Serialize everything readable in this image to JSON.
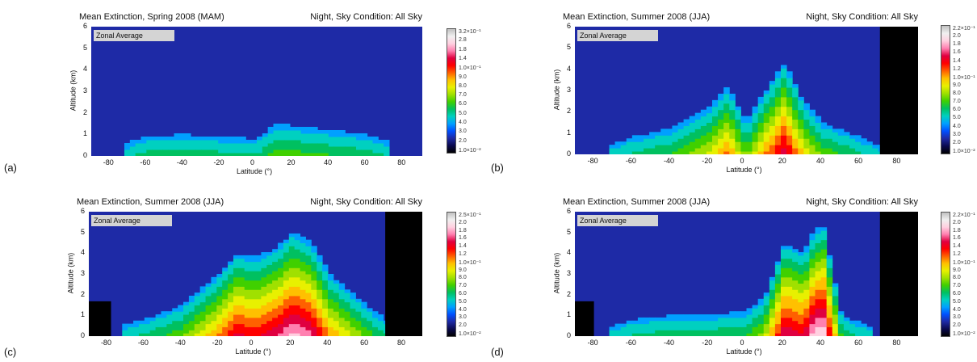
{
  "figure": {
    "panels": [
      {
        "letter": "(a)",
        "title": "Mean Extinction, Spring 2008 (MAM)",
        "condition": "Night, Sky Condition: All Sky",
        "box_label": "Zonal Average",
        "cbar_ticks": [
          "3.2×10⁻¹",
          "2.8",
          "1.8",
          "1.4",
          "1.0×10⁻¹",
          "9.0",
          "8.0",
          "7.0",
          "6.0",
          "5.0",
          "4.0",
          "3.0",
          "2.0",
          "1.0×10⁻²"
        ]
      },
      {
        "letter": "(b)",
        "title": "Mean Extinction, Summer 2008 (JJA)",
        "condition": "Night, Sky Condition: All Sky",
        "box_label": "Zonal Average",
        "cbar_ticks": [
          "2.2×10⁻¹",
          "2.0",
          "1.8",
          "1.6",
          "1.4",
          "1.2",
          "1.0×10⁻¹",
          "9.0",
          "8.0",
          "7.0",
          "6.0",
          "5.0",
          "4.0",
          "3.0",
          "2.0",
          "1.0×10⁻²"
        ]
      },
      {
        "letter": "(c)",
        "title": "Mean Extinction, Summer 2008 (JJA)",
        "condition": "Night, Sky Condition: All Sky",
        "box_label": "Zonal Average",
        "cbar_ticks": [
          "2.5×10⁻¹",
          "2.0",
          "1.8",
          "1.6",
          "1.4",
          "1.2",
          "1.0×10⁻¹",
          "9.0",
          "8.0",
          "7.0",
          "6.0",
          "5.0",
          "4.0",
          "3.0",
          "2.0",
          "1.0×10⁻²"
        ]
      },
      {
        "letter": "(d)",
        "title": "Mean Extinction, Summer 2008 (JJA)",
        "condition": "Night, Sky Condition: All Sky",
        "box_label": "Zonal Average",
        "cbar_ticks": [
          "2.2×10⁻¹",
          "2.0",
          "1.8",
          "1.6",
          "1.4",
          "1.2",
          "1.0×10⁻¹",
          "9.0",
          "8.0",
          "7.0",
          "6.0",
          "5.0",
          "4.0",
          "3.0",
          "2.0",
          "1.0×10⁻²"
        ]
      }
    ]
  },
  "chart_data": [
    {
      "type": "heatmap",
      "xlabel": "Latitude (°)",
      "ylabel": "Altitude (km)",
      "xlim": [
        -90,
        90
      ],
      "ylim": [
        0,
        6
      ],
      "x_ticks": [
        -80,
        -60,
        -40,
        -20,
        0,
        20,
        40,
        60,
        80
      ],
      "y_ticks": [
        0,
        1,
        2,
        3,
        4,
        5,
        6
      ],
      "profile_top_km": [
        [
          -70,
          0.6
        ],
        [
          -60,
          0.9
        ],
        [
          -40,
          1.0
        ],
        [
          -20,
          0.9
        ],
        [
          0,
          0.8
        ],
        [
          10,
          1.5
        ],
        [
          20,
          1.4
        ],
        [
          40,
          1.2
        ],
        [
          60,
          1.0
        ],
        [
          70,
          0.7
        ]
      ],
      "no_data_lat": []
    },
    {
      "type": "heatmap",
      "xlabel": "Latitude (°)",
      "ylabel": "Altitude (km)",
      "xlim": [
        -90,
        90
      ],
      "ylim": [
        0,
        6
      ],
      "x_ticks": [
        -80,
        -60,
        -40,
        -20,
        0,
        20,
        40,
        60,
        80
      ],
      "y_ticks": [
        0,
        1,
        2,
        3,
        4,
        5,
        6
      ],
      "profile_top_km": [
        [
          -70,
          0.5
        ],
        [
          -60,
          0.8
        ],
        [
          -40,
          1.2
        ],
        [
          -20,
          2.2
        ],
        [
          -10,
          3.2
        ],
        [
          0,
          1.5
        ],
        [
          10,
          3.0
        ],
        [
          20,
          4.3
        ],
        [
          30,
          2.5
        ],
        [
          40,
          1.5
        ],
        [
          60,
          0.8
        ],
        [
          70,
          0.4
        ]
      ],
      "no_data_lat": [
        [
          70,
          90
        ]
      ]
    },
    {
      "type": "heatmap",
      "xlabel": "Latitude (°)",
      "ylabel": "Altitude (km)",
      "xlim": [
        -90,
        90
      ],
      "ylim": [
        0,
        6
      ],
      "x_ticks": [
        -80,
        -60,
        -40,
        -20,
        0,
        20,
        40,
        60,
        80
      ],
      "y_ticks": [
        0,
        1,
        2,
        3,
        4,
        5,
        6
      ],
      "profile_top_km": [
        [
          -70,
          0.6
        ],
        [
          -60,
          0.8
        ],
        [
          -40,
          1.5
        ],
        [
          -20,
          3.0
        ],
        [
          -10,
          4.0
        ],
        [
          0,
          3.8
        ],
        [
          10,
          4.2
        ],
        [
          20,
          5.0
        ],
        [
          30,
          4.5
        ],
        [
          40,
          3.0
        ],
        [
          60,
          1.5
        ],
        [
          70,
          0.8
        ]
      ],
      "no_data_lat": [
        [
          -90,
          -78
        ],
        [
          70,
          90
        ]
      ]
    },
    {
      "type": "heatmap",
      "xlabel": "Latitude (°)",
      "ylabel": "Altitude (km)",
      "xlim": [
        -90,
        90
      ],
      "ylim": [
        0,
        6
      ],
      "x_ticks": [
        -80,
        -60,
        -40,
        -20,
        0,
        20,
        40,
        60,
        80
      ],
      "y_ticks": [
        0,
        1,
        2,
        3,
        4,
        5,
        6
      ],
      "profile_top_km": [
        [
          -70,
          0.5
        ],
        [
          -60,
          0.8
        ],
        [
          -40,
          1.0
        ],
        [
          -20,
          1.0
        ],
        [
          0,
          1.2
        ],
        [
          10,
          2.0
        ],
        [
          20,
          4.5
        ],
        [
          30,
          4.0
        ],
        [
          35,
          5.0
        ],
        [
          40,
          5.5
        ],
        [
          50,
          1.0
        ],
        [
          65,
          0.5
        ]
      ],
      "no_data_lat": [
        [
          -90,
          -80
        ],
        [
          70,
          90
        ]
      ]
    }
  ],
  "colors": {
    "background_field": "#1e2aa6",
    "colormap": [
      "#000000",
      "#0a0a50",
      "#1e2aa6",
      "#0050ff",
      "#00a0ff",
      "#00d0c0",
      "#00c060",
      "#40d000",
      "#a0e000",
      "#e8f000",
      "#ffc000",
      "#ff6000",
      "#ff0000",
      "#e00040",
      "#ff80b0",
      "#ffd0e0",
      "#f0f0f0",
      "#c0c0c0"
    ],
    "no_data": "#000000"
  }
}
